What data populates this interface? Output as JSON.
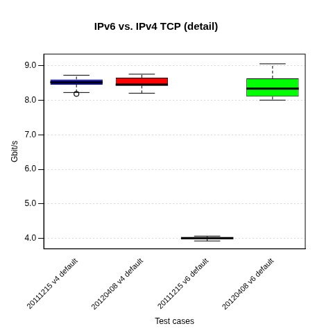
{
  "chart_data": {
    "type": "box",
    "title": "IPv6 vs. IPv4 TCP (detail)",
    "x_label": "Test cases",
    "y_label": "Gbit/s",
    "categories": [
      "20111215 v4 default",
      "20120408 v4 default",
      "20111215 v6 default",
      "20120408 v6 default"
    ],
    "values": [
      {
        "min": 8.22,
        "q1": 8.45,
        "median": 8.52,
        "q3": 8.6,
        "max": 8.72,
        "outliers": [
          8.18
        ]
      },
      {
        "min": 8.2,
        "q1": 8.42,
        "median": 8.45,
        "q3": 8.65,
        "max": 8.75,
        "outliers": []
      },
      {
        "min": 3.93,
        "q1": 3.98,
        "median": 4.01,
        "q3": 4.04,
        "max": 4.07,
        "outliers": []
      },
      {
        "min": 8.0,
        "q1": 8.1,
        "median": 8.33,
        "q3": 8.63,
        "max": 9.05,
        "outliers": []
      }
    ],
    "colors": [
      "#0000ff",
      "#ff0000",
      "#000080",
      "#00ff00"
    ],
    "ylim": [
      3.7,
      9.33
    ],
    "yticks": [
      {
        "value": 4,
        "label": "4.0"
      },
      {
        "value": 5,
        "label": "5.0"
      },
      {
        "value": 6,
        "label": "6.0"
      },
      {
        "value": 7,
        "label": "7.0"
      },
      {
        "value": 8,
        "label": "8.0"
      },
      {
        "value": 9,
        "label": "9.0"
      }
    ],
    "grid": true
  }
}
